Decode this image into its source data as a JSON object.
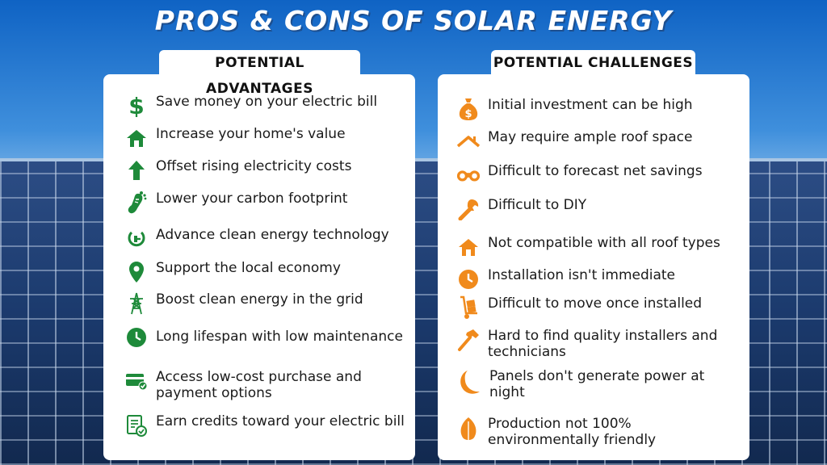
{
  "title": "PROS & CONS OF SOLAR ENERGY",
  "colors": {
    "green": "#1e8a3a",
    "orange": "#f08a1c",
    "sky": "#1a6fc9"
  },
  "advantages": {
    "heading": "POTENTIAL ADVANTAGES",
    "items": [
      {
        "label": "Save money on your electric bill",
        "icon": "dollar-icon"
      },
      {
        "label": "Increase your home's value",
        "icon": "house-icon"
      },
      {
        "label": "Offset rising electricity costs",
        "icon": "arrow-up-icon"
      },
      {
        "label": "Lower your carbon footprint",
        "icon": "footprint-icon"
      },
      {
        "label": "Advance clean energy technology",
        "icon": "plug-icon"
      },
      {
        "label": "Support the local economy",
        "icon": "map-pin-icon"
      },
      {
        "label": "Boost clean energy in the grid",
        "icon": "power-tower-icon"
      },
      {
        "label": "Long lifespan with low maintenance",
        "icon": "clock-icon"
      },
      {
        "label": "Access low-cost purchase and payment options",
        "icon": "credit-card-icon"
      },
      {
        "label": "Earn credits toward your electric bill",
        "icon": "document-check-icon"
      }
    ]
  },
  "challenges": {
    "heading": "POTENTIAL CHALLENGES",
    "items": [
      {
        "label": "Initial investment can be high",
        "icon": "money-bag-icon"
      },
      {
        "label": "May require ample roof space",
        "icon": "roof-icon"
      },
      {
        "label": "Difficult to forecast net savings",
        "icon": "binoculars-icon"
      },
      {
        "label": "Difficult to DIY",
        "icon": "wrench-icon"
      },
      {
        "label": "Not compatible with all roof types",
        "icon": "house-icon"
      },
      {
        "label": "Installation isn't immediate",
        "icon": "clock-icon"
      },
      {
        "label": "Difficult to move once installed",
        "icon": "hand-truck-icon"
      },
      {
        "label": "Hard to find quality installers and technicians",
        "icon": "hammer-icon"
      },
      {
        "label": "Panels don't generate power at night",
        "icon": "moon-icon"
      },
      {
        "label": "Production not 100% environmentally friendly",
        "icon": "leaf-icon"
      }
    ]
  }
}
